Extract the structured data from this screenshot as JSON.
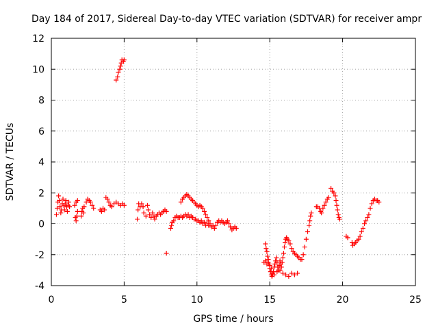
{
  "chart_data": {
    "type": "scatter",
    "title": "Day 184 of 2017, Sidereal Day-to-day VTEC variation (SDTVAR) for receiver ampr",
    "xlabel": "GPS time / hours",
    "ylabel": "SDTVAR / TECUs",
    "xlim": [
      0,
      25
    ],
    "ylim": [
      -4,
      12
    ],
    "xticks": [
      0,
      5,
      10,
      15,
      20,
      25
    ],
    "yticks": [
      -4,
      -2,
      0,
      2,
      4,
      6,
      8,
      10,
      12
    ],
    "grid": true,
    "marker": "+",
    "color": "#ff0000",
    "series": [
      {
        "name": "SDTVAR",
        "points": [
          [
            0.35,
            0.6
          ],
          [
            0.4,
            1.0
          ],
          [
            0.45,
            1.4
          ],
          [
            0.5,
            1.8
          ],
          [
            0.55,
            1.5
          ],
          [
            0.6,
            1.1
          ],
          [
            0.65,
            0.7
          ],
          [
            0.7,
            0.9
          ],
          [
            0.75,
            1.3
          ],
          [
            0.8,
            1.6
          ],
          [
            0.85,
            1.2
          ],
          [
            0.9,
            0.9
          ],
          [
            0.95,
            1.3
          ],
          [
            1.0,
            1.5
          ],
          [
            1.05,
            1.1
          ],
          [
            1.1,
            0.8
          ],
          [
            1.15,
            1.2
          ],
          [
            1.2,
            1.4
          ],
          [
            1.25,
            1.1
          ],
          [
            1.65,
            0.4
          ],
          [
            1.7,
            0.2
          ],
          [
            1.75,
            0.5
          ],
          [
            1.8,
            0.8
          ],
          [
            1.6,
            1.2
          ],
          [
            1.7,
            1.4
          ],
          [
            1.8,
            1.5
          ],
          [
            2.05,
            0.5
          ],
          [
            2.1,
            0.8
          ],
          [
            2.15,
            1.0
          ],
          [
            2.2,
            0.7
          ],
          [
            2.25,
            1.1
          ],
          [
            2.4,
            1.4
          ],
          [
            2.5,
            1.6
          ],
          [
            2.6,
            1.5
          ],
          [
            2.7,
            1.4
          ],
          [
            2.8,
            1.2
          ],
          [
            2.9,
            1.0
          ],
          [
            3.35,
            0.9
          ],
          [
            3.45,
            0.8
          ],
          [
            3.55,
            1.0
          ],
          [
            3.65,
            0.9
          ],
          [
            3.75,
            1.7
          ],
          [
            3.85,
            1.6
          ],
          [
            3.95,
            1.4
          ],
          [
            4.05,
            1.2
          ],
          [
            4.15,
            1.1
          ],
          [
            4.3,
            1.3
          ],
          [
            4.45,
            1.4
          ],
          [
            4.6,
            1.3
          ],
          [
            4.75,
            1.2
          ],
          [
            4.9,
            1.3
          ],
          [
            5.0,
            1.2
          ],
          [
            4.45,
            9.3
          ],
          [
            4.55,
            9.5
          ],
          [
            4.6,
            9.8
          ],
          [
            4.7,
            10.0
          ],
          [
            4.75,
            10.2
          ],
          [
            4.8,
            10.4
          ],
          [
            4.85,
            10.6
          ],
          [
            4.95,
            10.5
          ],
          [
            5.0,
            10.6
          ],
          [
            5.9,
            0.3
          ],
          [
            5.95,
            0.9
          ],
          [
            6.0,
            1.3
          ],
          [
            6.1,
            1.1
          ],
          [
            6.2,
            1.3
          ],
          [
            6.3,
            1.1
          ],
          [
            6.35,
            0.7
          ],
          [
            6.5,
            0.5
          ],
          [
            6.6,
            1.2
          ],
          [
            6.65,
            0.9
          ],
          [
            6.75,
            0.6
          ],
          [
            6.85,
            0.4
          ],
          [
            6.95,
            0.7
          ],
          [
            7.05,
            0.5
          ],
          [
            7.1,
            0.3
          ],
          [
            7.2,
            0.5
          ],
          [
            7.3,
            0.6
          ],
          [
            7.4,
            0.7
          ],
          [
            7.5,
            0.6
          ],
          [
            7.6,
            0.7
          ],
          [
            7.7,
            0.8
          ],
          [
            7.8,
            0.9
          ],
          [
            7.9,
            0.8
          ],
          [
            7.9,
            -1.9
          ],
          [
            8.2,
            -0.3
          ],
          [
            8.25,
            -0.1
          ],
          [
            8.3,
            0.1
          ],
          [
            8.4,
            0.2
          ],
          [
            8.5,
            0.4
          ],
          [
            8.6,
            0.5
          ],
          [
            8.7,
            0.4
          ],
          [
            8.8,
            0.4
          ],
          [
            8.9,
            0.5
          ],
          [
            9.0,
            0.4
          ],
          [
            9.1,
            0.5
          ],
          [
            9.2,
            0.6
          ],
          [
            9.3,
            0.5
          ],
          [
            9.4,
            0.6
          ],
          [
            9.5,
            0.4
          ],
          [
            9.6,
            0.5
          ],
          [
            9.7,
            0.4
          ],
          [
            9.8,
            0.3
          ],
          [
            9.9,
            0.3
          ],
          [
            10.0,
            0.2
          ],
          [
            10.1,
            0.2
          ],
          [
            10.2,
            0.1
          ],
          [
            10.3,
            0.2
          ],
          [
            10.4,
            0.0
          ],
          [
            10.5,
            0.1
          ],
          [
            10.6,
            -0.1
          ],
          [
            10.7,
            0.0
          ],
          [
            10.8,
            -0.1
          ],
          [
            10.9,
            0.0
          ],
          [
            11.0,
            -0.2
          ],
          [
            11.1,
            -0.1
          ],
          [
            11.2,
            -0.3
          ],
          [
            11.3,
            -0.1
          ],
          [
            11.4,
            0.1
          ],
          [
            11.5,
            0.2
          ],
          [
            11.6,
            0.1
          ],
          [
            11.7,
            0.2
          ],
          [
            11.8,
            0.1
          ],
          [
            11.9,
            0.0
          ],
          [
            12.0,
            0.1
          ],
          [
            12.1,
            0.2
          ],
          [
            12.2,
            0.0
          ],
          [
            12.3,
            -0.2
          ],
          [
            12.4,
            -0.4
          ],
          [
            12.5,
            -0.3
          ],
          [
            12.6,
            -0.2
          ],
          [
            12.7,
            -0.3
          ],
          [
            8.9,
            1.4
          ],
          [
            9.0,
            1.6
          ],
          [
            9.1,
            1.7
          ],
          [
            9.2,
            1.8
          ],
          [
            9.3,
            1.9
          ],
          [
            9.4,
            1.8
          ],
          [
            9.5,
            1.7
          ],
          [
            9.6,
            1.6
          ],
          [
            9.7,
            1.5
          ],
          [
            9.8,
            1.4
          ],
          [
            9.9,
            1.3
          ],
          [
            10.0,
            1.2
          ],
          [
            10.1,
            1.1
          ],
          [
            10.2,
            1.2
          ],
          [
            10.3,
            1.1
          ],
          [
            10.4,
            1.0
          ],
          [
            10.5,
            0.8
          ],
          [
            10.6,
            0.6
          ],
          [
            10.7,
            0.4
          ],
          [
            10.8,
            0.2
          ],
          [
            14.7,
            -1.3
          ],
          [
            14.75,
            -1.6
          ],
          [
            14.8,
            -1.8
          ],
          [
            14.85,
            -2.1
          ],
          [
            14.9,
            -2.3
          ],
          [
            14.95,
            -2.6
          ],
          [
            15.0,
            -2.9
          ],
          [
            15.05,
            -3.1
          ],
          [
            15.1,
            -3.3
          ],
          [
            15.15,
            -3.4
          ],
          [
            15.2,
            -3.3
          ],
          [
            15.25,
            -3.1
          ],
          [
            15.3,
            -2.8
          ],
          [
            15.35,
            -2.6
          ],
          [
            15.4,
            -2.4
          ],
          [
            15.45,
            -2.2
          ],
          [
            15.5,
            -2.5
          ],
          [
            15.55,
            -2.8
          ],
          [
            15.6,
            -3.0
          ],
          [
            15.65,
            -2.7
          ],
          [
            15.7,
            -2.4
          ],
          [
            15.75,
            -2.6
          ],
          [
            15.8,
            -2.8
          ],
          [
            15.85,
            -2.5
          ],
          [
            15.9,
            -2.2
          ],
          [
            15.95,
            -1.9
          ],
          [
            16.0,
            -1.5
          ],
          [
            16.05,
            -1.2
          ],
          [
            16.1,
            -1.0
          ],
          [
            16.15,
            -0.9
          ],
          [
            16.2,
            -1.0
          ],
          [
            16.3,
            -1.1
          ],
          [
            16.4,
            -1.3
          ],
          [
            16.5,
            -1.6
          ],
          [
            16.6,
            -1.8
          ],
          [
            16.7,
            -1.9
          ],
          [
            16.8,
            -2.0
          ],
          [
            16.9,
            -2.1
          ],
          [
            17.0,
            -2.2
          ],
          [
            17.1,
            -2.3
          ],
          [
            17.2,
            -2.3
          ],
          [
            17.3,
            -2.0
          ],
          [
            17.4,
            -1.5
          ],
          [
            17.5,
            -1.0
          ],
          [
            17.6,
            -0.5
          ],
          [
            17.7,
            -0.1
          ],
          [
            17.75,
            0.2
          ],
          [
            17.8,
            0.5
          ],
          [
            17.85,
            0.7
          ],
          [
            14.6,
            -2.5
          ],
          [
            14.7,
            -2.4
          ],
          [
            14.8,
            -2.6
          ],
          [
            14.9,
            -2.5
          ],
          [
            15.0,
            -2.7
          ],
          [
            15.1,
            -2.9
          ],
          [
            15.2,
            -3.2
          ],
          [
            15.3,
            -3.3
          ],
          [
            15.5,
            -3.1
          ],
          [
            15.7,
            -3.0
          ],
          [
            15.9,
            -3.2
          ],
          [
            16.1,
            -3.3
          ],
          [
            16.3,
            -3.4
          ],
          [
            16.5,
            -3.2
          ],
          [
            16.7,
            -3.3
          ],
          [
            16.9,
            -3.2
          ],
          [
            18.2,
            1.1
          ],
          [
            18.3,
            1.1
          ],
          [
            18.4,
            1.0
          ],
          [
            18.5,
            0.8
          ],
          [
            18.55,
            0.7
          ],
          [
            18.65,
            1.0
          ],
          [
            18.75,
            1.2
          ],
          [
            18.85,
            1.4
          ],
          [
            18.95,
            1.6
          ],
          [
            19.05,
            1.7
          ],
          [
            19.2,
            2.3
          ],
          [
            19.3,
            2.1
          ],
          [
            19.4,
            2.0
          ],
          [
            19.5,
            1.8
          ],
          [
            19.55,
            1.5
          ],
          [
            19.6,
            1.2
          ],
          [
            19.65,
            0.9
          ],
          [
            19.7,
            0.6
          ],
          [
            19.75,
            0.4
          ],
          [
            19.8,
            0.3
          ],
          [
            20.25,
            -0.8
          ],
          [
            20.35,
            -0.9
          ],
          [
            20.65,
            -1.2
          ],
          [
            20.7,
            -1.4
          ],
          [
            20.8,
            -1.3
          ],
          [
            20.9,
            -1.2
          ],
          [
            21.0,
            -1.1
          ],
          [
            21.1,
            -1.0
          ],
          [
            21.2,
            -0.8
          ],
          [
            21.3,
            -0.5
          ],
          [
            21.4,
            -0.3
          ],
          [
            21.5,
            0.0
          ],
          [
            21.6,
            0.2
          ],
          [
            21.7,
            0.4
          ],
          [
            21.8,
            0.6
          ],
          [
            21.9,
            1.0
          ],
          [
            22.0,
            1.3
          ],
          [
            22.1,
            1.5
          ],
          [
            22.2,
            1.6
          ],
          [
            22.3,
            1.5
          ],
          [
            22.4,
            1.5
          ],
          [
            22.5,
            1.4
          ]
        ]
      }
    ]
  }
}
